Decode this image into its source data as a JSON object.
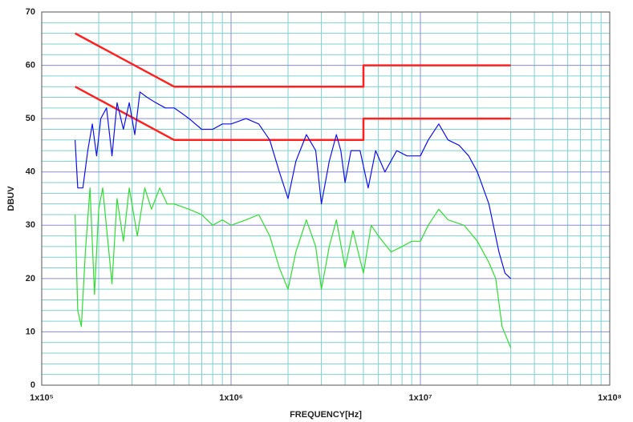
{
  "chart_data": {
    "type": "line",
    "x_label": "FREQUENCY[Hz]",
    "y_label": "DBUV",
    "xlog": true,
    "xlim": [
      100000,
      100000000
    ],
    "xticks": [
      {
        "value": 100000,
        "label": "1x10⁵"
      },
      {
        "value": 1000000,
        "label": "1x10⁶"
      },
      {
        "value": 10000000,
        "label": "1x10⁷"
      },
      {
        "value": 100000000,
        "label": "1x10⁸"
      }
    ],
    "ylim": [
      0,
      70
    ],
    "yticks": [
      0,
      10,
      20,
      30,
      40,
      50,
      60,
      70
    ],
    "grid": true,
    "minor_grid": true,
    "series": [
      {
        "color": "#ff2020",
        "x": [
          150000,
          500000,
          5000000,
          5000000,
          30000000
        ],
        "values": [
          66,
          56,
          56,
          60,
          60
        ]
      },
      {
        "color": "#ff2020",
        "x": [
          150000,
          500000,
          5000000,
          5000000,
          30000000
        ],
        "values": [
          56,
          46,
          46,
          50,
          50
        ]
      },
      {
        "color": "#1010f0",
        "x": [
          150000,
          155000,
          165000,
          175000,
          185000,
          195000,
          205000,
          220000,
          235000,
          250000,
          270000,
          290000,
          310000,
          330000,
          360000,
          400000,
          450000,
          500000,
          550000,
          600000,
          700000,
          800000,
          900000,
          1000000,
          1200000,
          1400000,
          1600000,
          1800000,
          2000000,
          2200000,
          2500000,
          2800000,
          3000000,
          3300000,
          3600000,
          3800000,
          4000000,
          4300000,
          4800000,
          5300000,
          5800000,
          6500000,
          7500000,
          8500000,
          10000000,
          11000000,
          12500000,
          14000000,
          16000000,
          18000000,
          20000000,
          23000000,
          26000000,
          28000000,
          30000000
        ],
        "values": [
          46,
          37,
          37,
          44,
          49,
          43,
          50,
          52,
          43,
          53,
          48,
          53,
          47,
          55,
          54,
          53,
          52,
          52,
          51,
          50,
          48,
          48,
          49,
          49,
          50,
          49,
          46,
          40,
          35,
          42,
          47,
          44,
          34,
          42,
          47,
          44,
          38,
          44,
          44,
          37,
          44,
          40,
          44,
          43,
          43,
          46,
          49,
          46,
          45,
          43,
          40,
          34,
          25,
          21,
          20
        ]
      },
      {
        "color": "#30dd30",
        "x": [
          150000,
          155000,
          162000,
          170000,
          180000,
          190000,
          200000,
          210000,
          225000,
          235000,
          250000,
          270000,
          290000,
          320000,
          350000,
          380000,
          420000,
          460000,
          500000,
          600000,
          700000,
          800000,
          900000,
          1000000,
          1200000,
          1400000,
          1600000,
          1800000,
          2000000,
          2200000,
          2500000,
          2800000,
          3000000,
          3300000,
          3600000,
          4000000,
          4400000,
          5000000,
          5500000,
          6000000,
          7000000,
          8000000,
          9000000,
          10000000,
          11000000,
          12500000,
          14000000,
          17000000,
          20000000,
          23000000,
          25000000,
          27000000,
          30000000
        ],
        "values": [
          32,
          14,
          11,
          25,
          37,
          17,
          33,
          37,
          26,
          19,
          35,
          27,
          37,
          28,
          37,
          33,
          37,
          34,
          34,
          33,
          32,
          30,
          31,
          30,
          31,
          32,
          28,
          22,
          18,
          25,
          31,
          26,
          18,
          26,
          31,
          22,
          29,
          21,
          30,
          28,
          25,
          26,
          27,
          27,
          30,
          33,
          31,
          30,
          27,
          23,
          20,
          11,
          7
        ]
      }
    ]
  }
}
